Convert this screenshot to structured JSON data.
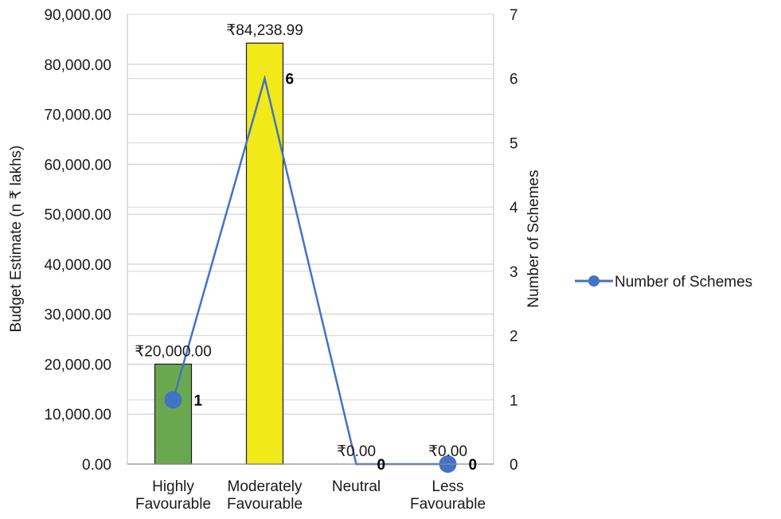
{
  "chart_data": {
    "type": "bar",
    "title": "",
    "categories": [
      [
        "Highly",
        "Favourable"
      ],
      [
        "Moderately",
        "Favourable"
      ],
      [
        "Neutral"
      ],
      [
        "Less",
        "Favourable"
      ]
    ],
    "bar_series": {
      "values": [
        20000,
        84238.99,
        0,
        0
      ],
      "labels": [
        "₹20,000.00",
        "₹84,238.99",
        "₹0.00",
        "₹0.00"
      ],
      "colors": [
        "#6aa84f",
        "#f1e91a",
        "#f1e91a",
        "#f1e91a"
      ]
    },
    "line_series": {
      "name": "Number of Schemes",
      "type": "line",
      "axis": "secondary",
      "values": [
        1,
        6,
        0,
        0
      ],
      "labels": [
        "1",
        "6",
        "0",
        "0"
      ],
      "color": "#4472c4"
    },
    "ylabel": "Budget Estimate (n ₹ lakhs)",
    "y2label": "Number of Schemes",
    "ylim": [
      0,
      90000
    ],
    "y2lim": [
      0,
      7
    ],
    "y_ticks": [
      "0.00",
      "10,000.00",
      "20,000.00",
      "30,000.00",
      "40,000.00",
      "50,000.00",
      "60,000.00",
      "70,000.00",
      "80,000.00",
      "90,000.00"
    ],
    "y2_ticks": [
      "0",
      "1",
      "2",
      "3",
      "4",
      "5",
      "6",
      "7"
    ],
    "grid": true,
    "legend": {
      "position": "right",
      "entries": [
        "Number of Schemes"
      ]
    }
  }
}
